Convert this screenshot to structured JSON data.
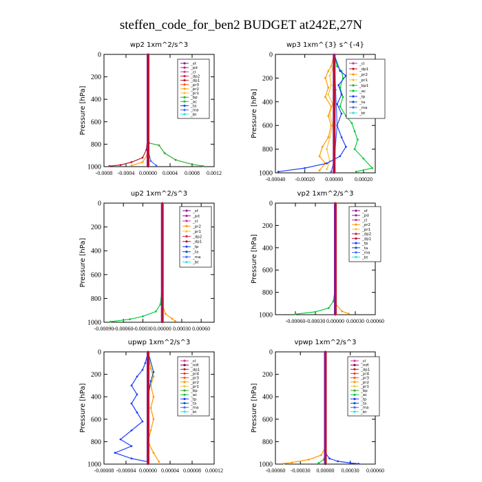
{
  "title": "steffen_code_for_ben2  BUDGET at242E,27N",
  "colors": {
    "sf": "#8b1a8b",
    "pd": "#b0208b",
    "cl": "#cc3399",
    "dp1": "#c0102a",
    "dp2": "#d81e3c",
    "pr1": "#f4c430",
    "pr2": "#ff9900",
    "pr3": "#ff5500",
    "pr4": "#ff3030",
    "mfl": "#7a0050",
    "bp": "#33aa33",
    "bp1": "#33aa33",
    "ac": "#00cc33",
    "tp": "#1c3cff",
    "ta": "#0055cc",
    "ma": "#4466ff",
    "bt": "#33dddd",
    "dp": "#d01040",
    "sum": "#cc0000"
  },
  "chart_data": [
    {
      "type": "line",
      "title": "wp2  1xm^2/s^3",
      "ylabel": "Pressure [hPa]",
      "ylim": [
        1000,
        0
      ],
      "xlim": [
        -0.0008,
        0.0012
      ],
      "xticks": [
        -0.0008,
        -0.0004,
        0.0,
        0.0004,
        0.0008,
        0.0012
      ],
      "xtick_labels": [
        "-0.0008",
        "-0.0004",
        "0.00000",
        "0.0004",
        "0.0008",
        "0.0012"
      ],
      "yticks": [
        0,
        200,
        400,
        600,
        800,
        1000
      ],
      "legend": [
        "_sf",
        "_pd",
        "_cl",
        "_dp2",
        "_dp1",
        "_pr3",
        "_pr2",
        "_pr1",
        "_bp",
        "_ac",
        "_ta",
        "_ma",
        "_bt"
      ],
      "legend_colors": [
        "sf",
        "pd",
        "cl",
        "dp2",
        "dp1",
        "pr3",
        "pr2",
        "pr1",
        "bp",
        "ac",
        "ta",
        "ma",
        "bt"
      ],
      "series": [
        {
          "color": "bp",
          "points": [
            [
              0.0,
              0
            ],
            [
              0.0,
              600
            ],
            [
              2e-05,
              790
            ],
            [
              0.0002,
              810
            ],
            [
              0.0003,
              880
            ],
            [
              0.0005,
              940
            ],
            [
              0.0008,
              980
            ],
            [
              0.001,
              995
            ]
          ]
        },
        {
          "color": "dp1",
          "points": [
            [
              0.0,
              0
            ],
            [
              0.0,
              700
            ],
            [
              -3e-05,
              850
            ],
            [
              -0.0001,
              920
            ],
            [
              -0.0003,
              960
            ],
            [
              -0.0005,
              985
            ],
            [
              -0.0007,
              995
            ]
          ]
        },
        {
          "color": "pr2",
          "points": [
            [
              0.0,
              0
            ],
            [
              0.0,
              800
            ],
            [
              -2e-05,
              900
            ],
            [
              -0.0001,
              960
            ],
            [
              -0.0003,
              990
            ]
          ]
        },
        {
          "color": "ma",
          "points": [
            [
              0.0,
              0
            ],
            [
              0.0,
              850
            ],
            [
              5e-05,
              950
            ],
            [
              0.00015,
              990
            ]
          ]
        },
        {
          "color": "sf",
          "points": [
            [
              0.0,
              0
            ],
            [
              0.0,
              1000
            ]
          ]
        }
      ]
    },
    {
      "type": "line",
      "title": "wp3  1xm^{3} s^{-4}",
      "ylabel": "Pressure [hPa]",
      "ylim": [
        1000,
        0
      ],
      "xlim": [
        -0.0004,
        0.00028
      ],
      "xticks": [
        -0.0004,
        -0.0002,
        0.0,
        0.0002
      ],
      "xtick_labels": [
        "-0.00040",
        "-0.00020",
        "0.00000",
        "0.00020"
      ],
      "yticks": [
        0,
        200,
        400,
        600,
        800,
        1000
      ],
      "legend": [
        "_cl",
        "_dp1",
        "_pr2",
        "_pr1",
        "_bp1",
        "_ac",
        "_tp",
        "_ta",
        "_ma",
        "_bt"
      ],
      "legend_colors": [
        "cl",
        "dp1",
        "pr2",
        "pr1",
        "bp1",
        "ac",
        "tp",
        "ta",
        "ma",
        "bt"
      ],
      "series": [
        {
          "color": "pr2",
          "points": [
            [
              0.0,
              0
            ],
            [
              -2e-05,
              100
            ],
            [
              -4e-05,
              140
            ],
            [
              -6e-05,
              200
            ],
            [
              -4e-05,
              280
            ],
            [
              -6e-05,
              360
            ],
            [
              -2e-05,
              440
            ],
            [
              -4e-05,
              520
            ],
            [
              -2e-05,
              600
            ],
            [
              -4e-05,
              700
            ],
            [
              -8e-05,
              780
            ],
            [
              -0.0001,
              860
            ],
            [
              -6e-05,
              920
            ],
            [
              -0.0001,
              980
            ]
          ]
        },
        {
          "color": "pr1",
          "points": [
            [
              0.0,
              0
            ],
            [
              -1e-05,
              120
            ],
            [
              -3e-05,
              180
            ],
            [
              -2e-05,
              260
            ],
            [
              -4e-05,
              340
            ],
            [
              -1e-05,
              420
            ],
            [
              -3e-05,
              500
            ],
            [
              -1e-05,
              600
            ],
            [
              -3e-05,
              700
            ],
            [
              -5e-05,
              800
            ],
            [
              -3e-05,
              900
            ],
            [
              -5e-05,
              970
            ]
          ]
        },
        {
          "color": "ac",
          "points": [
            [
              0.0,
              0
            ],
            [
              2e-05,
              100
            ],
            [
              5e-05,
              140
            ],
            [
              6e-05,
              200
            ],
            [
              4e-05,
              280
            ],
            [
              6e-05,
              360
            ],
            [
              4e-05,
              440
            ],
            [
              8e-05,
              520
            ],
            [
              0.00012,
              580
            ],
            [
              0.00014,
              650
            ],
            [
              0.00016,
              720
            ],
            [
              0.00014,
              800
            ],
            [
              0.0002,
              880
            ],
            [
              0.00026,
              960
            ],
            [
              0.00015,
              990
            ]
          ]
        },
        {
          "color": "tp",
          "points": [
            [
              0.0,
              0
            ],
            [
              4e-05,
              140
            ],
            [
              8e-05,
              180
            ],
            [
              3e-05,
              260
            ],
            [
              5e-05,
              340
            ],
            [
              2e-05,
              420
            ],
            [
              5e-05,
              500
            ],
            [
              2e-05,
              600
            ],
            [
              5e-05,
              700
            ],
            [
              8e-05,
              780
            ],
            [
              4e-05,
              860
            ],
            [
              -5e-05,
              920
            ],
            [
              -0.0002,
              960
            ],
            [
              -0.00038,
              990
            ]
          ]
        },
        {
          "color": "dp1",
          "points": [
            [
              0.0,
              0
            ],
            [
              0.0,
              1000
            ]
          ]
        },
        {
          "color": "ma",
          "points": [
            [
              0.0,
              0
            ],
            [
              1e-05,
              300
            ],
            [
              2e-05,
              600
            ],
            [
              0.0,
              900
            ],
            [
              -2e-05,
              990
            ]
          ]
        }
      ]
    },
    {
      "type": "line",
      "title": "up2  1xm^2/s^3",
      "ylabel": "Pressure [hPa]",
      "ylim": [
        1000,
        0
      ],
      "xlim": [
        -0.0009,
        0.0008
      ],
      "xticks": [
        -0.0009,
        -0.0006,
        -0.0003,
        0.0,
        0.0003,
        0.0006
      ],
      "xtick_labels": [
        "-0.00090",
        "-0.00060",
        "-0.00030",
        "0.00000",
        "0.00030",
        "0.00060"
      ],
      "yticks": [
        0,
        200,
        400,
        600,
        800,
        1000
      ],
      "legend": [
        "_sf",
        "_pd",
        "_cl",
        "_pr2",
        "_pr1",
        "_dp2",
        "_dp1",
        "_tp",
        "_ta",
        "_ma",
        "_bt"
      ],
      "legend_colors": [
        "sf",
        "pd",
        "cl",
        "pr2",
        "pr1",
        "dp2",
        "dp1",
        "tp",
        "ta",
        "ma",
        "bt"
      ],
      "series": [
        {
          "color": "ac",
          "points": [
            [
              0.0,
              0
            ],
            [
              0.0,
              700
            ],
            [
              -3e-05,
              850
            ],
            [
              -0.0001,
              910
            ],
            [
              -0.0003,
              950
            ],
            [
              -0.0005,
              975
            ],
            [
              -0.0008,
              995
            ]
          ]
        },
        {
          "color": "pr2",
          "points": [
            [
              0.0,
              0
            ],
            [
              0.0,
              850
            ],
            [
              5e-05,
              930
            ],
            [
              0.00015,
              970
            ],
            [
              0.0002,
              990
            ]
          ]
        },
        {
          "color": "dp1",
          "points": [
            [
              0.0,
              0
            ],
            [
              0.0,
              1000
            ]
          ]
        }
      ]
    },
    {
      "type": "line",
      "title": "vp2  1xm^2/s^3",
      "ylabel": "Pressure [hPa]",
      "ylim": [
        1000,
        0
      ],
      "xlim": [
        -0.0009,
        0.0006
      ],
      "xticks": [
        -0.0006,
        -0.0003,
        0.0,
        0.0003,
        0.0006
      ],
      "xtick_labels": [
        "-0.00060",
        "-0.00030",
        "0.00000",
        "0.00030",
        "0.00060"
      ],
      "yticks": [
        0,
        200,
        400,
        600,
        800,
        1000
      ],
      "legend": [
        "_sf",
        "_pd",
        "_cl",
        "_pr2",
        "_pr1",
        "_dp2",
        "_dp1",
        "_tp",
        "_ta",
        "_ma",
        "_bt"
      ],
      "legend_colors": [
        "sf",
        "pd",
        "cl",
        "pr2",
        "pr1",
        "dp2",
        "dp1",
        "tp",
        "ta",
        "ma",
        "bt"
      ],
      "series": [
        {
          "color": "ac",
          "points": [
            [
              0.0,
              0
            ],
            [
              0.0,
              750
            ],
            [
              -3e-05,
              880
            ],
            [
              -0.0001,
              940
            ],
            [
              -0.0003,
              975
            ],
            [
              -0.0006,
              995
            ]
          ]
        },
        {
          "color": "pr2",
          "points": [
            [
              0.0,
              0
            ],
            [
              0.0,
              900
            ],
            [
              0.0001,
              970
            ],
            [
              0.0002,
              990
            ]
          ]
        },
        {
          "color": "dp1",
          "points": [
            [
              0.0,
              0
            ],
            [
              0.0,
              1000
            ]
          ]
        }
      ]
    },
    {
      "type": "line",
      "title": "upwp  1xm^2/s^3",
      "ylabel": "Pressure [hPa]",
      "ylim": [
        1000,
        0
      ],
      "xlim": [
        -8e-05,
        0.00012
      ],
      "xticks": [
        -8e-05,
        -4e-05,
        0.0,
        4e-05,
        8e-05,
        0.00012
      ],
      "xtick_labels": [
        "-0.00008",
        "-0.00004",
        "0.00000",
        "0.00004",
        "0.00008",
        "0.00012"
      ],
      "yticks": [
        0,
        200,
        400,
        600,
        800,
        1000
      ],
      "legend": [
        "_cl",
        "_mfl",
        "_dp1",
        "_pr4",
        "_pr3",
        "_pr2",
        "_pr1",
        "_bp",
        "_ac",
        "_tp",
        "_ta",
        "_ma",
        "_bt"
      ],
      "legend_colors": [
        "cl",
        "mfl",
        "dp1",
        "pr4",
        "pr3",
        "pr2",
        "pr1",
        "bp",
        "ac",
        "tp",
        "ta",
        "ma",
        "bt"
      ],
      "series": [
        {
          "color": "tp",
          "points": [
            [
              0.0,
              0
            ],
            [
              -5e-06,
              100
            ],
            [
              -1e-05,
              160
            ],
            [
              -2e-05,
              220
            ],
            [
              -3e-05,
              300
            ],
            [
              -2e-05,
              380
            ],
            [
              -3e-05,
              460
            ],
            [
              -2e-05,
              540
            ],
            [
              -1e-05,
              620
            ],
            [
              -3e-05,
              700
            ],
            [
              -5e-05,
              780
            ],
            [
              -3e-05,
              840
            ],
            [
              -6e-05,
              900
            ],
            [
              -3e-05,
              950
            ],
            [
              0.0,
              980
            ]
          ]
        },
        {
          "color": "pr2",
          "points": [
            [
              0.0,
              0
            ],
            [
              5e-06,
              150
            ],
            [
              1e-05,
              220
            ],
            [
              5e-06,
              300
            ],
            [
              1e-05,
              400
            ],
            [
              5e-06,
              500
            ],
            [
              1e-05,
              600
            ],
            [
              5e-06,
              700
            ],
            [
              0.0,
              800
            ],
            [
              1e-05,
              900
            ],
            [
              2e-05,
              980
            ]
          ]
        },
        {
          "color": "ta",
          "points": [
            [
              0.0,
              0
            ],
            [
              1e-05,
              180
            ],
            [
              5e-06,
              260
            ],
            [
              0.0,
              400
            ]
          ]
        },
        {
          "color": "dp1",
          "points": [
            [
              0.0,
              0
            ],
            [
              0.0,
              1000
            ]
          ]
        }
      ]
    },
    {
      "type": "line",
      "title": "vpwp  1xm^2/s^3",
      "ylabel": "Pressure [hPa]",
      "ylim": [
        1000,
        0
      ],
      "xlim": [
        -0.0006,
        0.0006
      ],
      "xticks": [
        -0.0006,
        -0.0003,
        0.0,
        0.0003,
        0.0006
      ],
      "xtick_labels": [
        "-0.00060",
        "-0.00030",
        "0.00000",
        "0.00030",
        "0.00060"
      ],
      "yticks": [
        0,
        200,
        400,
        600,
        800,
        1000
      ],
      "legend": [
        "_cl",
        "_mfl",
        "_dp1",
        "_pr4",
        "_pr3",
        "_pr2",
        "_pr1",
        "_bp",
        "_ac",
        "_tp",
        "_ta",
        "_ma",
        "_bt"
      ],
      "legend_colors": [
        "cl",
        "mfl",
        "dp1",
        "pr4",
        "pr3",
        "pr2",
        "pr1",
        "bp",
        "ac",
        "tp",
        "ta",
        "ma",
        "bt"
      ],
      "series": [
        {
          "color": "pr2",
          "points": [
            [
              0.0,
              0
            ],
            [
              0.0,
              850
            ],
            [
              -5e-05,
              920
            ],
            [
              -0.0002,
              960
            ],
            [
              -0.0004,
              985
            ],
            [
              -0.0005,
              995
            ]
          ]
        },
        {
          "color": "tp",
          "points": [
            [
              0.0,
              0
            ],
            [
              0.0,
              900
            ],
            [
              5e-05,
              950
            ],
            [
              0.00015,
              975
            ],
            [
              0.0003,
              990
            ],
            [
              0.0004,
              997
            ]
          ]
        },
        {
          "color": "ac",
          "points": [
            [
              0.0,
              0
            ],
            [
              0.0,
              900
            ],
            [
              -2e-05,
              960
            ],
            [
              -8e-05,
              990
            ]
          ]
        },
        {
          "color": "mfl",
          "points": [
            [
              0.0,
              0
            ],
            [
              0.0,
              1000
            ]
          ]
        }
      ]
    }
  ]
}
